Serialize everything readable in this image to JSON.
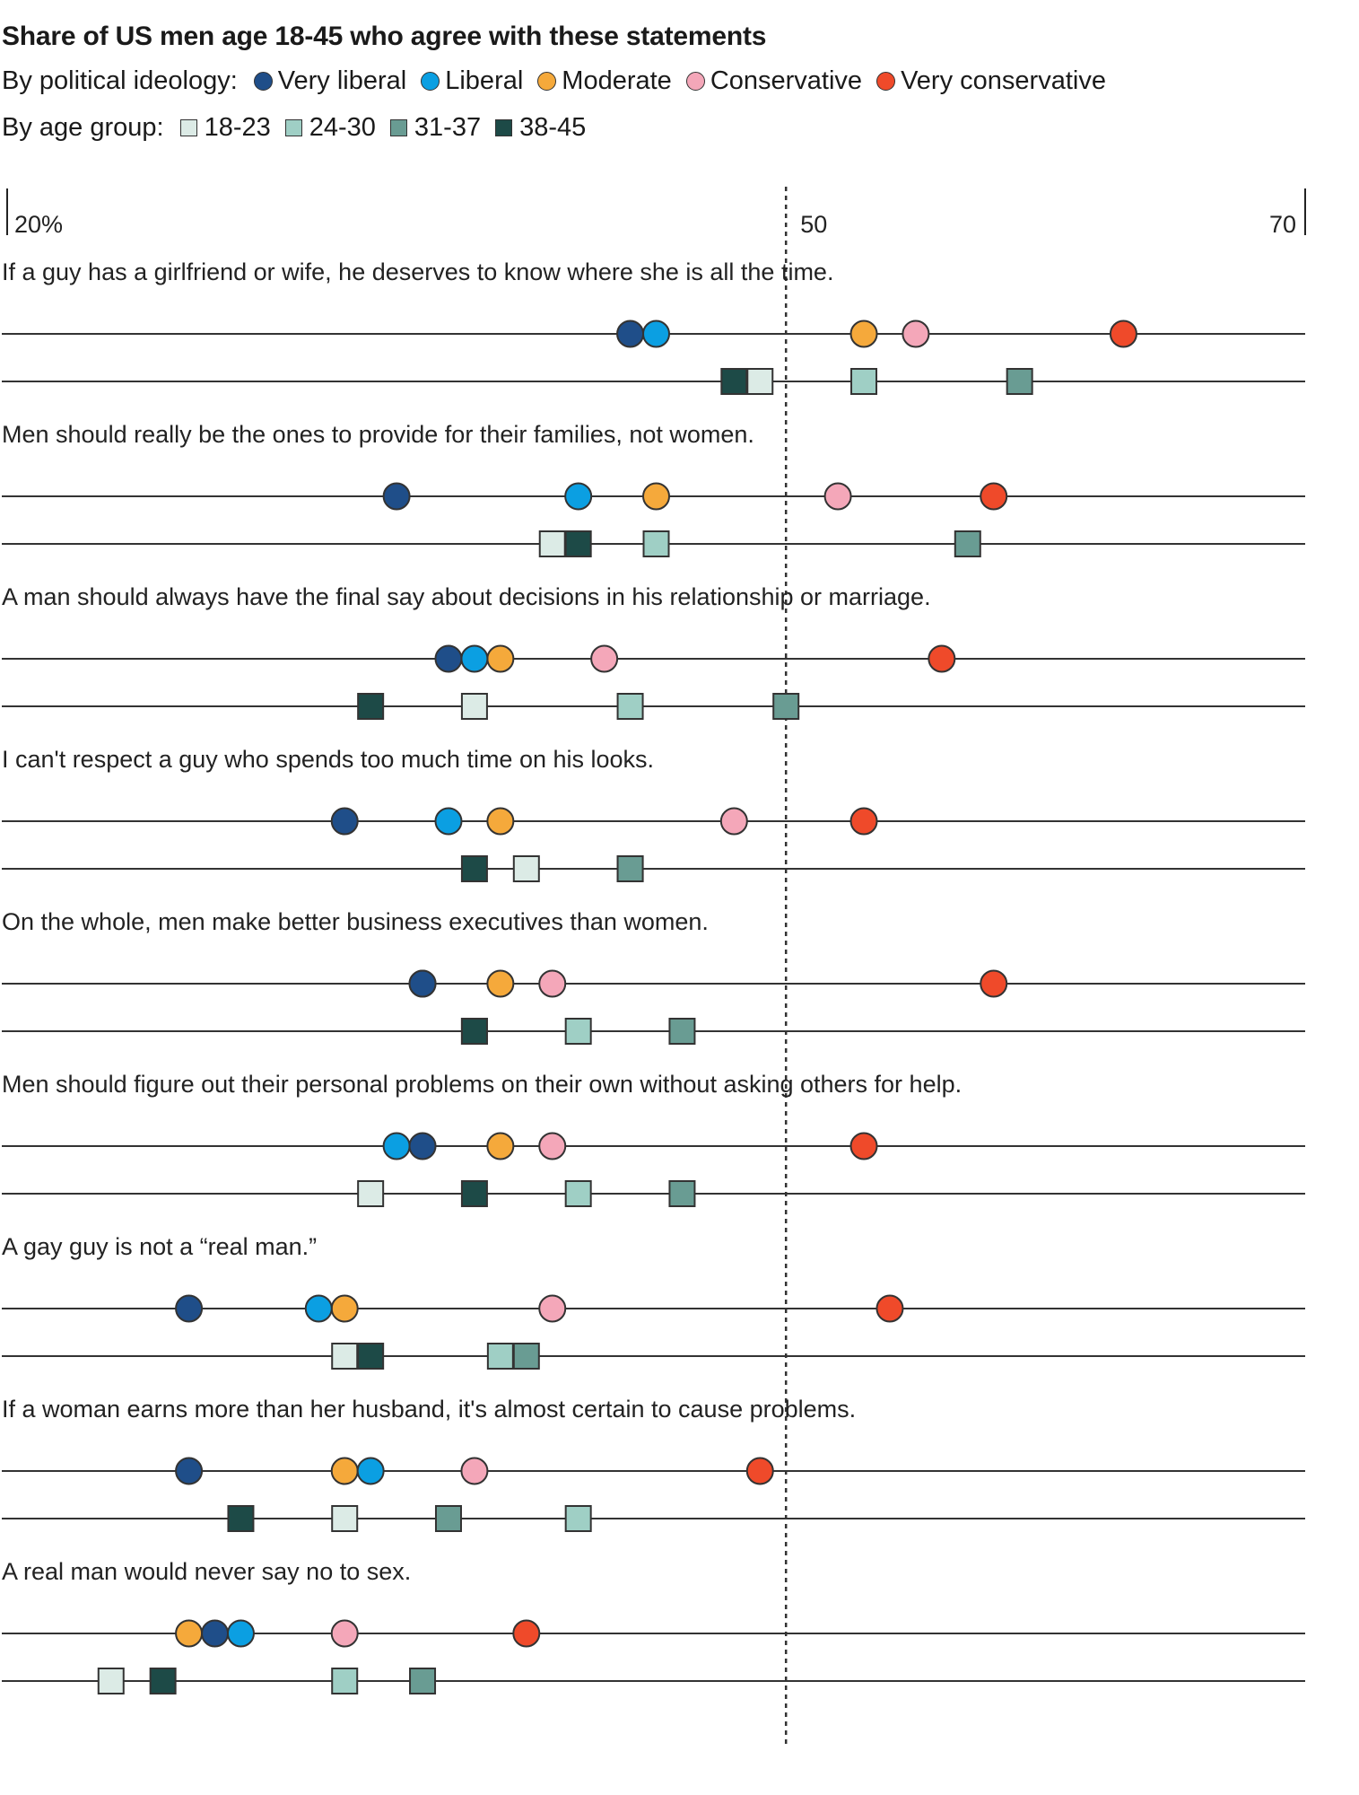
{
  "title": "Share of US men age 18-45 who agree with these statements",
  "legend": {
    "ideology_label": "By political ideology:",
    "ideology": [
      {
        "name": "Very liberal",
        "color": "#1f4e89"
      },
      {
        "name": "Liberal",
        "color": "#0b9fe2"
      },
      {
        "name": "Moderate",
        "color": "#f5a93b"
      },
      {
        "name": "Conservative",
        "color": "#f4a7b9"
      },
      {
        "name": "Very conservative",
        "color": "#ef4a2a"
      }
    ],
    "age_label": "By age group:",
    "age": [
      {
        "name": "18-23",
        "color": "#dcebe6"
      },
      {
        "name": "24-30",
        "color": "#9fcfc5"
      },
      {
        "name": "31-37",
        "color": "#699c93"
      },
      {
        "name": "38-45",
        "color": "#1d4a47"
      }
    ]
  },
  "chart_data": {
    "type": "scatter",
    "x_ticks": [
      "20%",
      "50",
      "70"
    ],
    "x_tick_values": [
      20,
      50,
      70
    ],
    "xlim": [
      20,
      70
    ],
    "reference_line": 50,
    "statements": [
      {
        "text": "If a guy has a girlfriend or wife, he deserves to know where she is all the time.",
        "ideology": {
          "Very liberal": 44,
          "Liberal": 45,
          "Moderate": 53,
          "Conservative": 55,
          "Very conservative": 63
        },
        "age": {
          "18-23": 49,
          "24-30": 53,
          "31-37": 59,
          "38-45": 48
        }
      },
      {
        "text": "Men should really be the ones to provide for their families, not women.",
        "ideology": {
          "Very liberal": 35,
          "Liberal": 42,
          "Moderate": 45,
          "Conservative": 52,
          "Very conservative": 58
        },
        "age": {
          "18-23": 41,
          "24-30": 45,
          "31-37": 57,
          "38-45": 42
        }
      },
      {
        "text": "A man should always have the final say about decisions in his relationship or marriage.",
        "ideology": {
          "Very liberal": 37,
          "Liberal": 38,
          "Moderate": 39,
          "Conservative": 43,
          "Very conservative": 56
        },
        "age": {
          "18-23": 38,
          "24-30": 44,
          "31-37": 50,
          "38-45": 34
        }
      },
      {
        "text": "I can't respect a guy who spends too much time on his looks.",
        "ideology": {
          "Very liberal": 33,
          "Liberal": 37,
          "Moderate": 39,
          "Conservative": 48,
          "Very conservative": 53
        },
        "age": {
          "18-23": 40,
          "24-30": 44,
          "31-37": 44,
          "38-45": 38
        }
      },
      {
        "text": "On the whole, men make better business executives than women.",
        "ideology": {
          "Very liberal": 36,
          "Liberal": 36,
          "Moderate": 39,
          "Conservative": 41,
          "Very conservative": 58
        },
        "age": {
          "18-23": 38,
          "24-30": 42,
          "31-37": 46,
          "38-45": 38
        }
      },
      {
        "text": "Men should figure out their personal problems on their own without asking others for help.",
        "ideology": {
          "Very liberal": 36,
          "Liberal": 35,
          "Moderate": 39,
          "Conservative": 41,
          "Very conservative": 53
        },
        "age": {
          "18-23": 34,
          "24-30": 42,
          "31-37": 46,
          "38-45": 38
        }
      },
      {
        "text": "A gay guy is not a “real man.”",
        "ideology": {
          "Very liberal": 27,
          "Liberal": 32,
          "Moderate": 33,
          "Conservative": 41,
          "Very conservative": 54
        },
        "age": {
          "18-23": 33,
          "24-30": 39,
          "31-37": 40,
          "38-45": 34
        }
      },
      {
        "text": "If a woman earns more than her husband, it's almost certain to cause problems.",
        "ideology": {
          "Very liberal": 27,
          "Liberal": 34,
          "Moderate": 33,
          "Conservative": 38,
          "Very conservative": 49
        },
        "age": {
          "18-23": 33,
          "24-30": 42,
          "31-37": 37,
          "38-45": 29
        }
      },
      {
        "text": "A real man would never say no to sex.",
        "ideology": {
          "Very liberal": 28,
          "Liberal": 29,
          "Moderate": 27,
          "Conservative": 33,
          "Very conservative": 40
        },
        "age": {
          "18-23": 24,
          "24-30": 33,
          "31-37": 36,
          "38-45": 26
        }
      }
    ]
  }
}
